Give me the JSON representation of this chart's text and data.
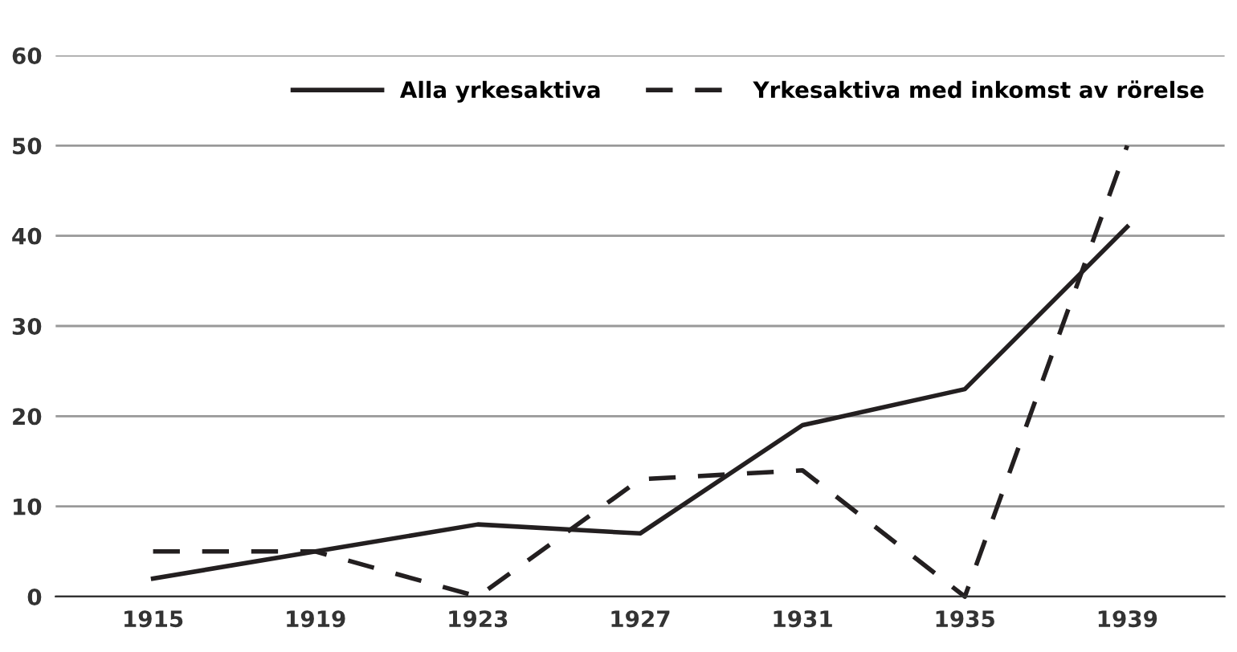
{
  "chart_data": {
    "type": "line",
    "categories": [
      "1915",
      "1919",
      "1923",
      "1927",
      "1931",
      "1935",
      "1939"
    ],
    "series": [
      {
        "name": "Alla yrkesaktiva",
        "color": "#231f20",
        "line_style": "solid",
        "values": [
          2,
          5,
          8,
          7,
          19,
          23,
          41
        ]
      },
      {
        "name": "Yrkesaktiva med inkomst av rörelse",
        "color": "#231f20",
        "line_style": "dashed",
        "values": [
          5,
          5,
          0,
          13,
          14,
          0,
          50
        ]
      }
    ],
    "ylim": [
      0,
      60
    ],
    "yticks": [
      0,
      10,
      20,
      30,
      40,
      50,
      60
    ],
    "grid": "y",
    "legend": "top right",
    "marker": "none"
  }
}
